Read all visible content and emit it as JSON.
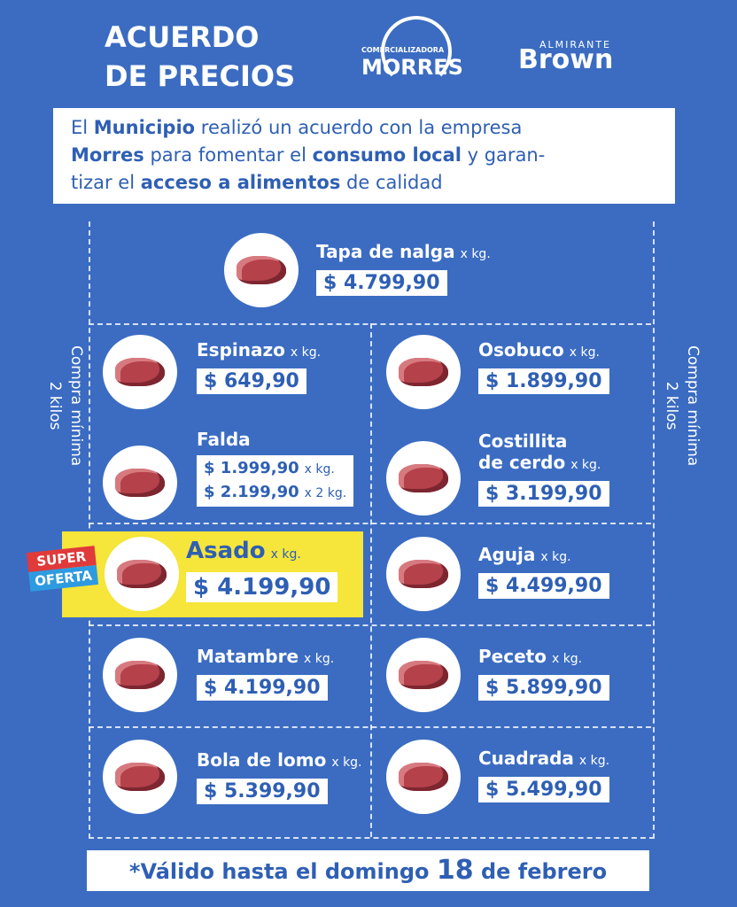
{
  "header": {
    "title_lines": [
      "ACUERDO",
      "DE PRECIOS"
    ],
    "logo_morres": {
      "top": "COMERCIALIZADORA",
      "name": "MORRES"
    },
    "logo_brown": {
      "top": "ALMIRANTE",
      "name": "Brown"
    }
  },
  "intro": {
    "lines": [
      [
        {
          "text": "El ",
          "bold": false
        },
        {
          "text": "Municipio",
          "bold": true
        },
        {
          "text": " realizó un acuerdo con la empresa",
          "bold": false
        }
      ],
      [
        {
          "text": "Morres",
          "bold": true
        },
        {
          "text": " para fomentar el ",
          "bold": false
        },
        {
          "text": "consumo local",
          "bold": true
        },
        {
          "text": " y garan-",
          "bold": false
        }
      ],
      [
        {
          "text": "tizar el ",
          "bold": false
        },
        {
          "text": "acceso a alimentos",
          "bold": true
        },
        {
          "text": " de calidad",
          "bold": false
        }
      ]
    ]
  },
  "side_note": {
    "lines": [
      "Compra mínima",
      "2 kilos"
    ]
  },
  "badge": {
    "lines": [
      "SUPER",
      "OFERTA"
    ]
  },
  "products": [
    {
      "name": [
        "Tapa de nalga"
      ],
      "unit": "x kg.",
      "price": "$ 4.799,90"
    },
    {
      "name": [
        "Espinazo"
      ],
      "unit": "x kg.",
      "price": "$ 649,90"
    },
    {
      "name": [
        "Osobuco"
      ],
      "unit": "x kg.",
      "price": "$ 1.899,90"
    },
    {
      "name": [
        "Falda"
      ],
      "prices": [
        {
          "price": "$ 1.999,90",
          "unit": "x kg."
        },
        {
          "price": "$ 2.199,90",
          "unit": "x 2 kg."
        }
      ]
    },
    {
      "name": [
        "Costillita",
        "de cerdo"
      ],
      "unit": "x kg.",
      "price": "$ 3.199,90"
    },
    {
      "name": [
        "Asado"
      ],
      "unit": "x kg.",
      "price": "$ 4.199,90",
      "highlight": true
    },
    {
      "name": [
        "Aguja"
      ],
      "unit": "x kg.",
      "price": "$ 4.499,90"
    },
    {
      "name": [
        "Matambre"
      ],
      "unit": "x kg.",
      "price": "$ 4.199,90"
    },
    {
      "name": [
        "Peceto"
      ],
      "unit": "x kg.",
      "price": "$ 5.899,90"
    },
    {
      "name": [
        "Bola de lomo"
      ],
      "unit": "x kg.",
      "price": "$ 5.399,90"
    },
    {
      "name": [
        "Cuadrada"
      ],
      "unit": "x kg.",
      "price": "$ 5.499,90"
    }
  ],
  "footer": {
    "before": "*Válido hasta el domingo",
    "day": "18",
    "after": "de febrero"
  }
}
